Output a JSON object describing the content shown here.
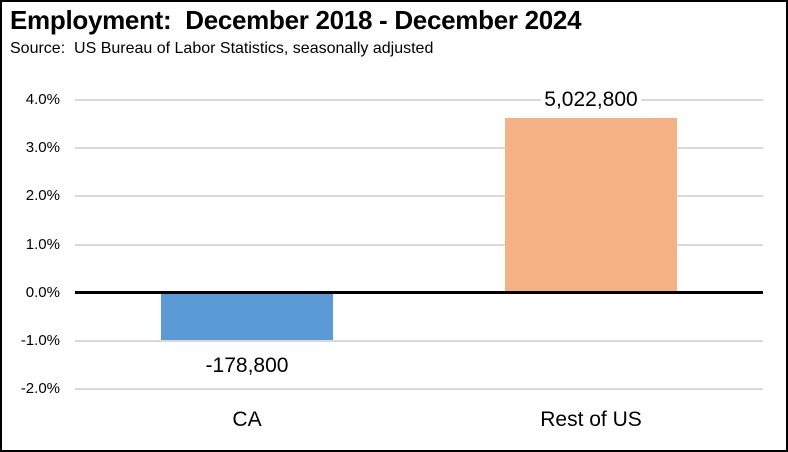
{
  "chart_data": {
    "type": "bar",
    "title": "Employment:  December 2018 - December 2024",
    "subtitle": "Source:  US Bureau of Labor Statistics, seasonally adjusted",
    "categories": [
      "CA",
      "Rest of US"
    ],
    "values": [
      -0.98,
      3.62
    ],
    "unit": "percent",
    "data_labels": [
      "-178,800",
      "5,022,800"
    ],
    "bar_colors": [
      "#5B9BD5",
      "#F4B183"
    ],
    "xlabel": "",
    "ylabel": "",
    "ylim": [
      -2,
      4
    ],
    "yticks": [
      {
        "value": 4,
        "label": "4.0%"
      },
      {
        "value": 3,
        "label": "3.0%"
      },
      {
        "value": 2,
        "label": "2.0%"
      },
      {
        "value": 1,
        "label": "1.0%"
      },
      {
        "value": 0,
        "label": "0.0%"
      },
      {
        "value": -1,
        "label": "-1.0%"
      },
      {
        "value": -2,
        "label": "-2.0%"
      }
    ],
    "grid": true,
    "legend": false,
    "gridline_color": "#D9D9D9",
    "zero_line_color": "#000000",
    "text_color": "#000000",
    "background": "#FFFFFF",
    "border_color": "#000000"
  }
}
